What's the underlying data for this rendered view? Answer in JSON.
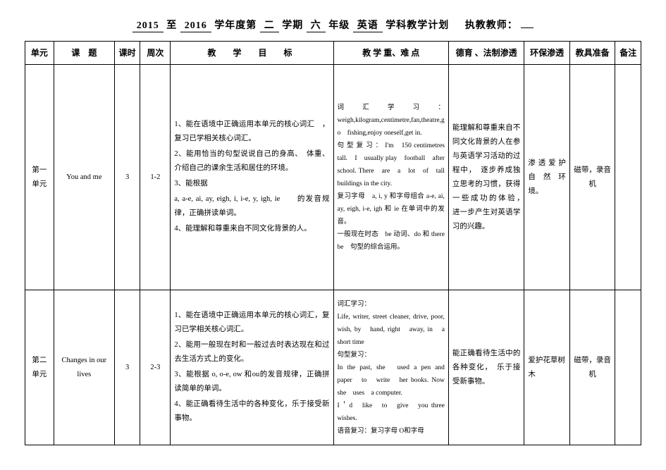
{
  "title": {
    "year_from": "2015",
    "year_to": "2016",
    "semester": "二",
    "grade": "六",
    "subject": "英语",
    "plan_label_1": "学年度第",
    "plan_label_2": "学期",
    "plan_label_3": "年级",
    "plan_label_4": "学科教学计划",
    "teacher_label": "执教教师：",
    "teacher": ""
  },
  "headers": {
    "unit": "单元",
    "topic": "课　题",
    "hours": "课时",
    "weeks": "周次",
    "objectives": "教　学　目　标",
    "keys": "教 学 重、难 点",
    "moral": "德育 、法制渗透",
    "env": "环保渗透",
    "tools": "教具准备",
    "note": "备注"
  },
  "rows": [
    {
      "unit": "第一单元",
      "topic": "You and me",
      "hours": "3",
      "weeks": "1-2",
      "objectives": [
        "1、能在语境中正确运用本单元的核心词汇　，复习已学相关核心词汇。",
        "2、能用恰当的句型说说自己的身高、　体重、介绍自己的课余生活和居住的环境。",
        "3、能根据",
        "a, a-e, ai, ay, eigh, i, i-e, y, igh, ie　　的发音规律，正确拼读单词。",
        "4、能理解和尊重来自不同文化背景的人。"
      ],
      "keys": "词 汇 学 习 ： weigh,kilogram,centimetre,fan,theatre,go　fishing,enjoy oneself,get in.\n句 型 复 习 ： I'm　150 centimetres　tall.　I　usually play　football　after　school. There　are　a　lot　of　tall buildings in the city.\n复习字母　a, i, y 和字母组合 a-e, ai, ay, eigh, i-e, igh 和 ie 在单词中的发音。\n一般现在时态　be 动词、do 和 there be　句型的综合运用。",
      "moral": "能理解和尊重来自不同文化背景的人在参与英语学习活动的过程中，　逐步养成独立思考的习惯，获得一些成功的体验，　进一步产生对英语学习的兴趣。",
      "env": "渗 透 爱 护自 然 环境。",
      "tools": "磁带，录音机",
      "note": ""
    },
    {
      "unit": "第二单元",
      "topic": "Changes in our lives",
      "hours": "3",
      "weeks": "2-3",
      "objectives": [
        "1、能在语境中正确运用本单元的核心词汇，复习已学相关核心词汇。",
        "2、能用一般现在时和一般过去时表达现在和过去生活方式上的变化。",
        "3、能根据 o, o-e, ow 和ou的发音规律，正确拼读简单的单词。",
        "4、能正确看待生活中的各种变化，乐于接受新事物。"
      ],
      "keys": "词汇学习：\nLife, writer, street cleaner, drive, poor, wish, by　hand, right　away, in　a short time\n句型复习：\nIn the past, she　used a pen and　paper　to　write　her books. Now　she　uses　a computer.\nI＇d　like　to　give　you three wishes.\n语音复习：复习字母 O和字母",
      "moral": "能正确看待生活中的各种变化，　乐于接受新事物。",
      "env": "爱护花草树木",
      "tools": "磁带，录音机",
      "note": ""
    }
  ],
  "style": {
    "background_color": "#ffffff",
    "text_color": "#000000",
    "border_color": "#000000",
    "base_font_size": 11,
    "title_font_size": 14,
    "header_font_size": 12,
    "content_font_size": 10.5,
    "keys_font_size": 9.5,
    "font_family": "SimSun"
  }
}
